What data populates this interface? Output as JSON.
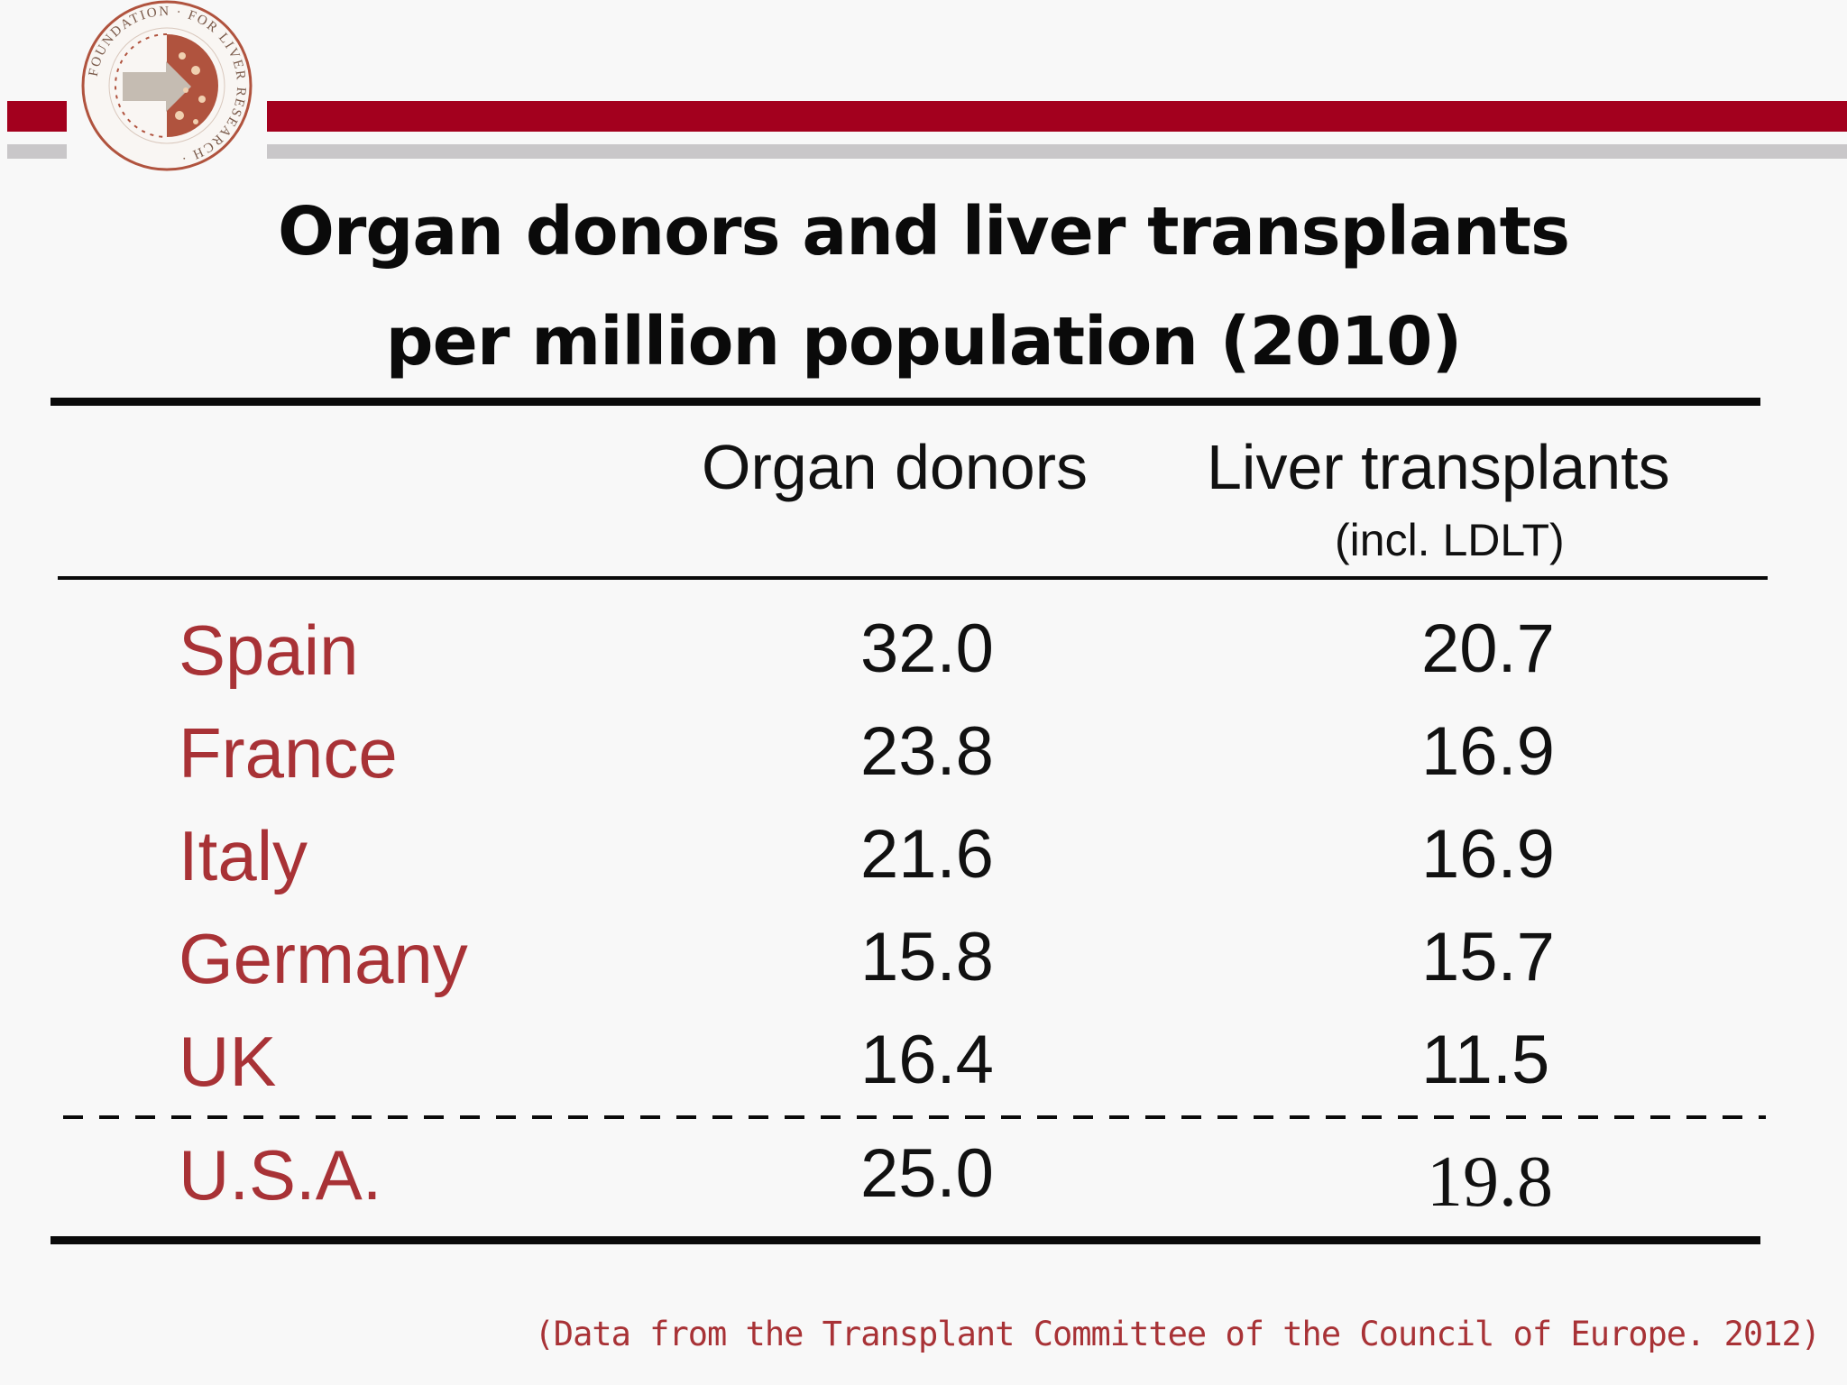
{
  "logo": {
    "text": "FOUNDATION FOR LIVER RESEARCH"
  },
  "title": {
    "line1": "Organ donors and liver transplants",
    "line2": "per million population (2010)"
  },
  "table": {
    "headers": {
      "donors": "Organ donors",
      "liver": "Liver transplants",
      "liver_sub": "(incl. LDLT)"
    },
    "rows": [
      {
        "country": "Spain",
        "donors": "32.0",
        "liver": "20.7"
      },
      {
        "country": "France",
        "donors": "23.8",
        "liver": "16.9"
      },
      {
        "country": "Italy",
        "donors": "21.6",
        "liver": "16.9"
      },
      {
        "country": "Germany",
        "donors": "15.8",
        "liver": "15.7"
      },
      {
        "country": "UK",
        "donors": "16.4",
        "liver": "11.5"
      },
      {
        "country": "U.S.A.",
        "donors": "25.0",
        "liver": "19.8"
      }
    ]
  },
  "source": "(Data from the Transplant Committee of the Council of Europe. 2012)",
  "colors": {
    "brand_red": "#a3001e",
    "country_red": "#a83236",
    "stripe_gray": "#c9c7c9"
  }
}
